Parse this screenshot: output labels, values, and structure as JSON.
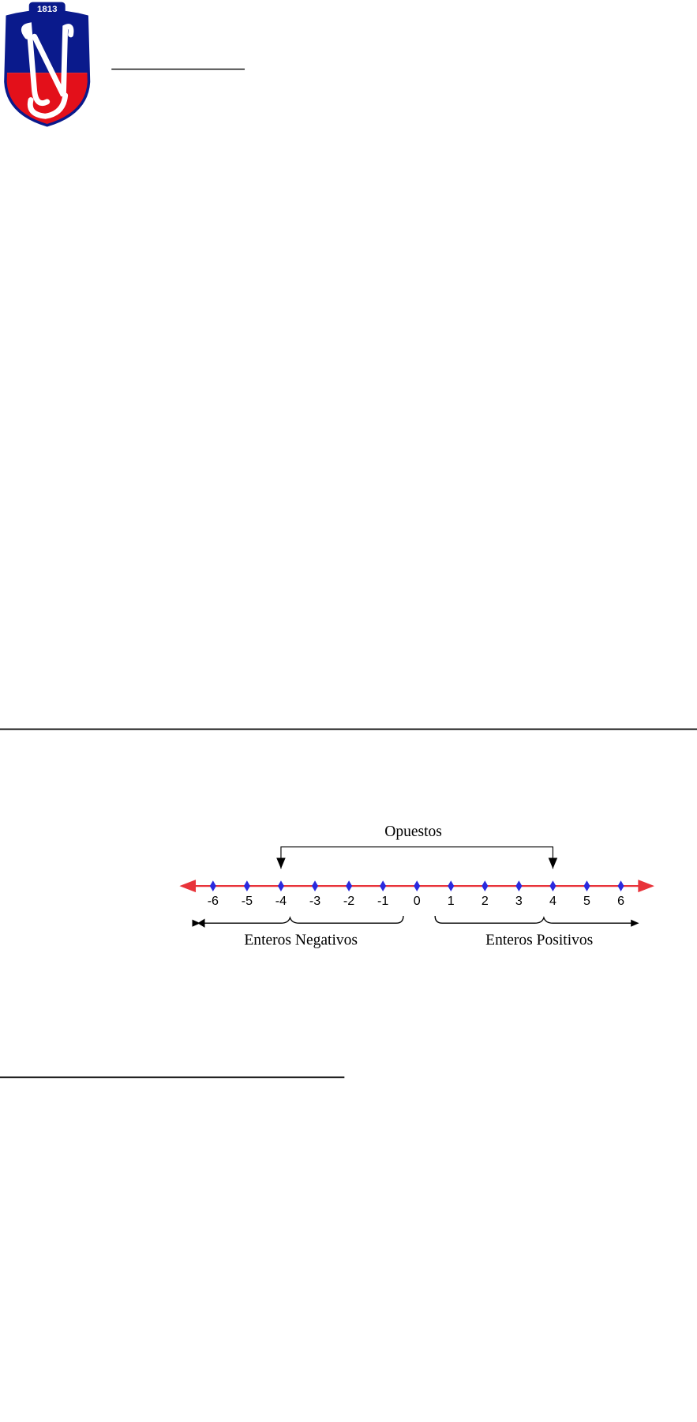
{
  "header": {
    "logo_year": "1813"
  },
  "number_line": {
    "opposites_label": "Opuestos",
    "labels": [
      "-6",
      "-5",
      "-4",
      "-3",
      "-2",
      "-1",
      "0",
      "1",
      "2",
      "3",
      "4",
      "5",
      "6"
    ],
    "negatives_label": "Enteros Negativos",
    "positives_label": "Enteros Positivos"
  }
}
